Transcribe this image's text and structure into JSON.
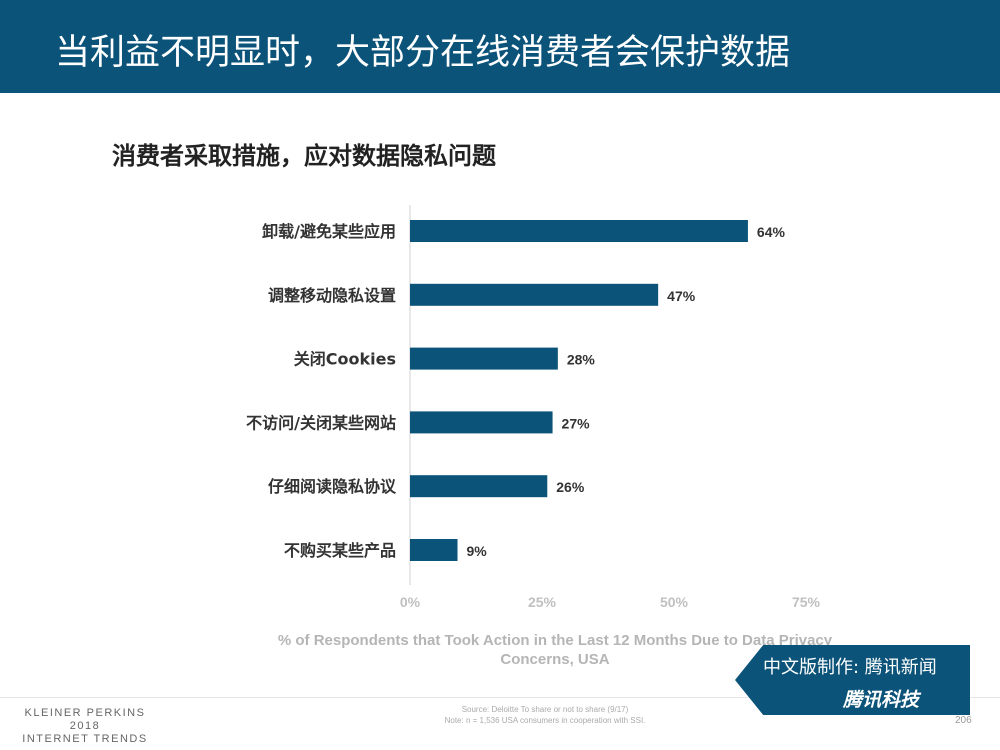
{
  "header": {
    "title": "当利益不明显时，大部分在线消费者会保护数据"
  },
  "subtitle": "消费者采取措施，应对数据隐私问题",
  "chart_data": {
    "type": "bar",
    "orientation": "horizontal",
    "categories": [
      "卸载/避免某些应用",
      "调整移动隐私设置",
      "关闭Cookies",
      "不访问/关闭某些网站",
      "仔细阅读隐私协议",
      "不购买某些产品"
    ],
    "values": [
      64,
      47,
      28,
      27,
      26,
      9
    ],
    "data_labels": [
      "64%",
      "47%",
      "28%",
      "27%",
      "26%",
      "9%"
    ],
    "xlim": [
      0,
      75
    ],
    "xticks": [
      0,
      25,
      50,
      75
    ],
    "xtick_labels": [
      "0%",
      "25%",
      "50%",
      "75%"
    ],
    "xlabel": "% of Respondents that Took Action in the Last 12 Months Due to Data Privacy Concerns, USA",
    "bar_color": "#0b5379"
  },
  "footer": {
    "brand_line1": "KLEINER PERKINS",
    "brand_line2": "2018",
    "brand_line3": "INTERNET TRENDS",
    "source": "Source: Deloitte To share or not to share (9/17)",
    "note": "Note: n = 1,536 USA consumers in cooperation with SSI.",
    "page": "206"
  },
  "badge": {
    "line1": "中文版制作: 腾讯新闻",
    "line2": "腾讯科技"
  }
}
